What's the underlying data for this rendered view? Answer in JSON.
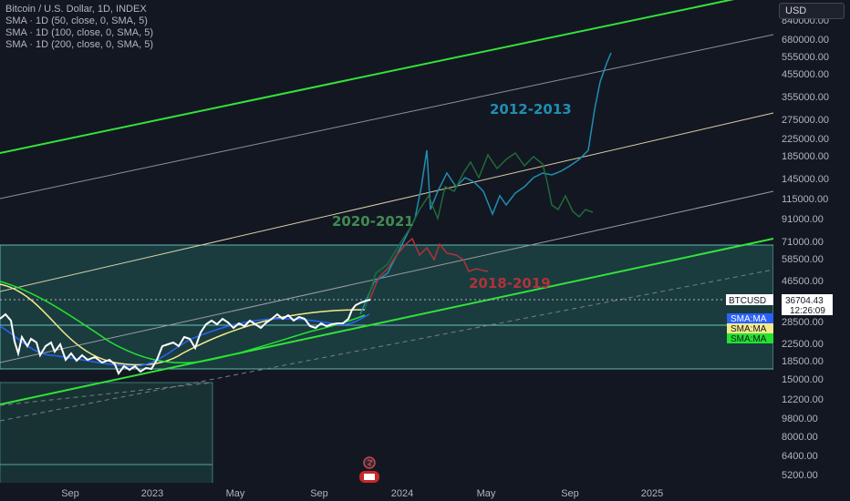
{
  "legend": {
    "title": "Bitcoin / U.S. Dollar, 1D, INDEX",
    "lines": [
      "SMA · 1D (50, close, 0, SMA, 5)",
      "SMA · 1D (100, close, 0, SMA, 5)",
      "SMA · 1D (200, close, 0, SMA, 5)"
    ]
  },
  "currency": "USD",
  "chart_data": {
    "type": "line",
    "price_axis": {
      "scale": "log",
      "ticks": [
        "840000.00",
        "680000.00",
        "555000.00",
        "455000.00",
        "355000.00",
        "275000.00",
        "225000.00",
        "185000.00",
        "145000.00",
        "115000.00",
        "91000.00",
        "71000.00",
        "58500.00",
        "46500.00",
        "28500.00",
        "22500.00",
        "18500.00",
        "15000.00",
        "12200.00",
        "9800.00",
        "8000.00",
        "6400.00",
        "5200.00"
      ]
    },
    "time_axis": {
      "ticks": [
        "Sep",
        "2023",
        "May",
        "Sep",
        "2024",
        "May",
        "Sep",
        "2025"
      ]
    },
    "price_tag": {
      "symbol": "BTCUSD",
      "price": "36704.43",
      "countdown": "12:26:09",
      "color": "#ffffff"
    },
    "ma_tags": [
      {
        "label": "SMA:MA",
        "color": "#2962ff"
      },
      {
        "label": "SMA:MA",
        "color": "#f5e98b"
      },
      {
        "label": "SMA:MA",
        "color": "#22e32e"
      }
    ],
    "annotations": [
      {
        "text": "2012-2013",
        "color": "#1f8fb0"
      },
      {
        "text": "2020-2021",
        "color": "#3f8d52"
      },
      {
        "text": "2018-2019",
        "color": "#b0323b"
      }
    ],
    "series": [
      {
        "name": "BTCUSD",
        "color": "#ffffff"
      },
      {
        "name": "SMA 50",
        "color": "#2962ff"
      },
      {
        "name": "SMA 100",
        "color": "#f5e98b"
      },
      {
        "name": "SMA 200",
        "color": "#22e32e"
      }
    ],
    "grid": false
  }
}
